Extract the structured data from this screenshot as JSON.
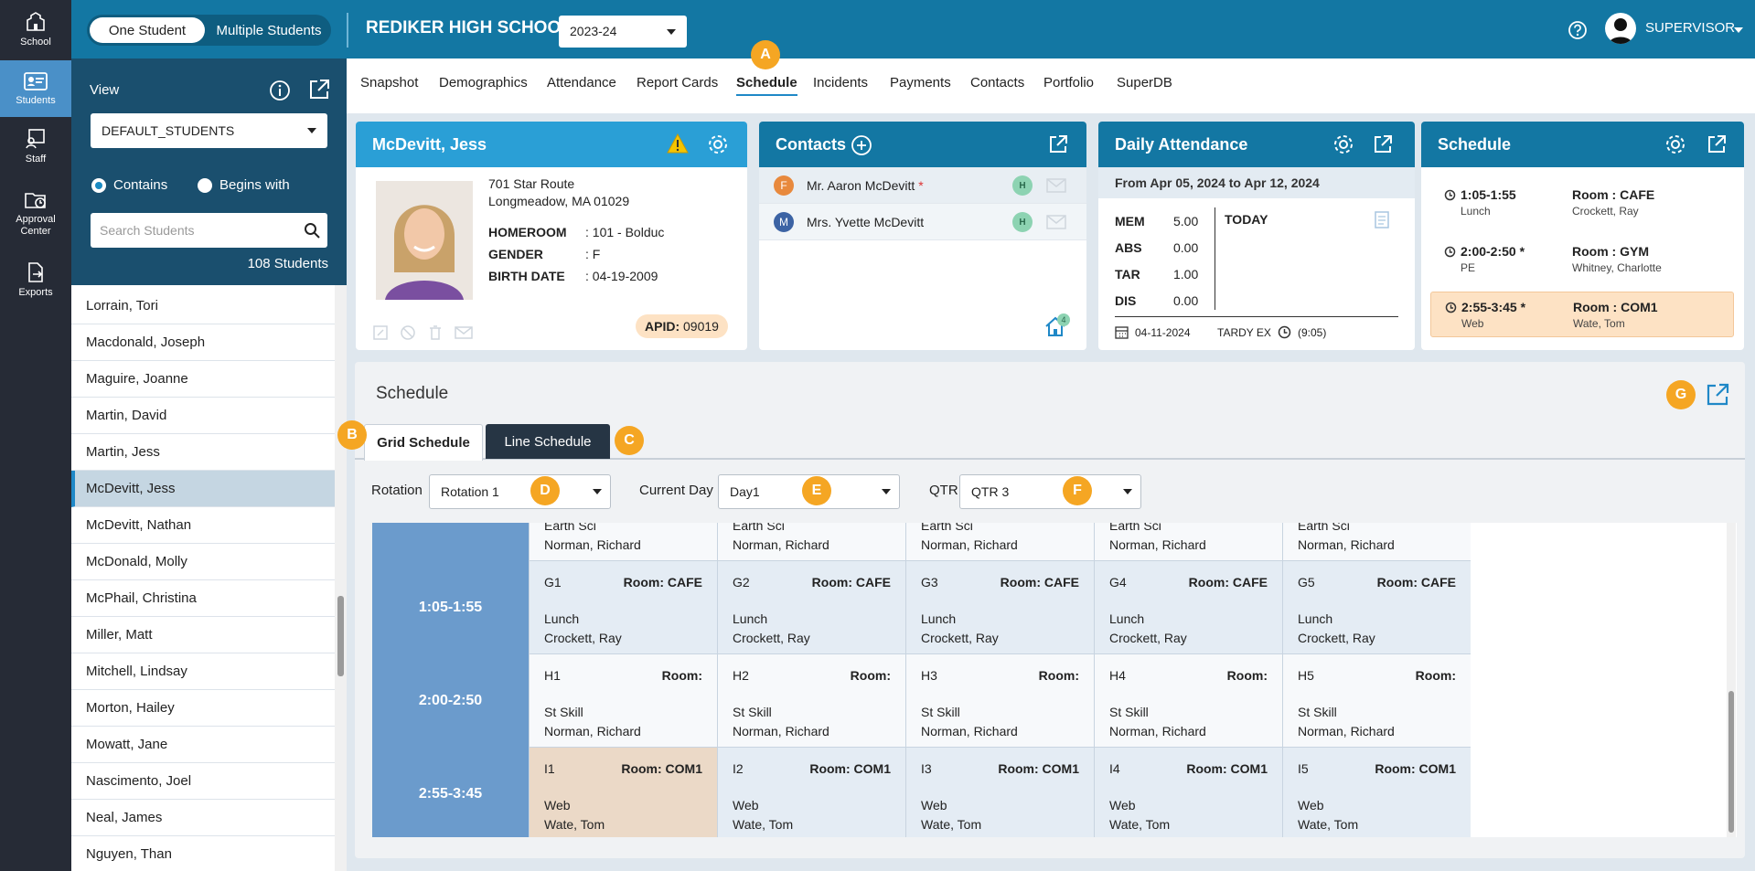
{
  "nav": [
    {
      "label": "School",
      "icon": "school-icon"
    },
    {
      "label": "Students",
      "icon": "students-icon"
    },
    {
      "label": "Staff",
      "icon": "staff-icon"
    },
    {
      "label": "Approval Center",
      "icon": "approval-icon"
    },
    {
      "label": "Exports",
      "icon": "exports-icon"
    }
  ],
  "topbar": {
    "one_student": "One Student",
    "multiple_students": "Multiple Students",
    "school_name": "REDIKER HIGH SCHOOL",
    "year": "2023-24",
    "user": "SUPERVISOR"
  },
  "view": {
    "label": "View",
    "selected": "DEFAULT_STUDENTS",
    "contains": "Contains",
    "begins_with": "Begins with",
    "search_placeholder": "Search Students",
    "count": "108 Students"
  },
  "students": [
    "Lorrain, Tori",
    "Macdonald, Joseph",
    "Maguire, Joanne",
    "Martin, David",
    "Martin, Jess",
    "McDevitt, Jess",
    "McDevitt, Nathan",
    "McDonald, Molly",
    "McPhail, Christina",
    "Miller, Matt",
    "Mitchell, Lindsay",
    "Morton, Hailey",
    "Mowatt, Jane",
    "Nascimento, Joel",
    "Neal, James",
    "Nguyen, Than"
  ],
  "selected_student": "McDevitt, Jess",
  "tabs": [
    "Snapshot",
    "Demographics",
    "Attendance",
    "Report Cards",
    "Schedule",
    "Incidents",
    "Payments",
    "Contacts",
    "Portfolio",
    "SuperDB"
  ],
  "active_tab": "Schedule",
  "badges": {
    "a": "A",
    "b": "B",
    "c": "C",
    "d": "D",
    "e": "E",
    "f": "F",
    "g": "G"
  },
  "student_card": {
    "name": "McDevitt, Jess",
    "address1": "701 Star Route",
    "address2": "Longmeadow, MA 01029",
    "homeroom_label": "HOMEROOM",
    "homeroom": ": 101 - Bolduc",
    "gender_label": "GENDER",
    "gender": ": F",
    "birth_label": "BIRTH DATE",
    "birth": ": 04-19-2009",
    "apid_label": "APID:",
    "apid": "09019"
  },
  "contacts_card": {
    "title": "Contacts",
    "contacts": [
      {
        "initial": "F",
        "name": "Mr. Aaron McDevitt",
        "star": "*",
        "badge": "H"
      },
      {
        "initial": "M",
        "name": "Mrs. Yvette McDevitt",
        "star": "",
        "badge": "H"
      }
    ],
    "home_count": "4"
  },
  "attendance_card": {
    "title": "Daily Attendance",
    "range": "From Apr 05, 2024 to Apr 12, 2024",
    "rows": [
      {
        "k": "MEM",
        "v": "5.00"
      },
      {
        "k": "ABS",
        "v": "0.00"
      },
      {
        "k": "TAR",
        "v": "1.00"
      },
      {
        "k": "DIS",
        "v": "0.00"
      }
    ],
    "today": "TODAY",
    "date": "04-11-2024",
    "code": "TARDY EX",
    "time": "(9:05)"
  },
  "schedule_card": {
    "title": "Schedule",
    "items": [
      {
        "time": "1:05-1:55",
        "sub": "Lunch",
        "room": "Room : CAFE",
        "teacher": "Crockett, Ray"
      },
      {
        "time": "2:00-2:50 *",
        "sub": "PE",
        "room": "Room : GYM",
        "teacher": "Whitney, Charlotte"
      },
      {
        "time": "2:55-3:45 *",
        "sub": "Web",
        "room": "Room : COM1",
        "teacher": "Wate, Tom"
      }
    ]
  },
  "schedule_panel": {
    "title": "Schedule",
    "grid_tab": "Grid Schedule",
    "line_tab": "Line Schedule",
    "rotation_label": "Rotation",
    "rotation": "Rotation 1",
    "day_label": "Current Day",
    "day": "Day1",
    "qtr_label": "QTR",
    "qtr": "QTR 3"
  },
  "grid": {
    "partial_row": {
      "subject": "Earth Sci",
      "teacher": "Norman, Richard"
    },
    "rows": [
      {
        "time": "1:05-1:55",
        "cells": [
          {
            "code": "G1",
            "room": "Room: CAFE",
            "subject": "Lunch",
            "teacher": "Crockett, Ray"
          },
          {
            "code": "G2",
            "room": "Room: CAFE",
            "subject": "Lunch",
            "teacher": "Crockett, Ray"
          },
          {
            "code": "G3",
            "room": "Room: CAFE",
            "subject": "Lunch",
            "teacher": "Crockett, Ray"
          },
          {
            "code": "G4",
            "room": "Room: CAFE",
            "subject": "Lunch",
            "teacher": "Crockett, Ray"
          },
          {
            "code": "G5",
            "room": "Room: CAFE",
            "subject": "Lunch",
            "teacher": "Crockett, Ray"
          }
        ]
      },
      {
        "time": "2:00-2:50",
        "cells": [
          {
            "code": "H1",
            "room": "Room:",
            "subject": "St Skill",
            "teacher": "Norman, Richard"
          },
          {
            "code": "H2",
            "room": "Room:",
            "subject": "St Skill",
            "teacher": "Norman, Richard"
          },
          {
            "code": "H3",
            "room": "Room:",
            "subject": "St Skill",
            "teacher": "Norman, Richard"
          },
          {
            "code": "H4",
            "room": "Room:",
            "subject": "St Skill",
            "teacher": "Norman, Richard"
          },
          {
            "code": "H5",
            "room": "Room:",
            "subject": "St Skill",
            "teacher": "Norman, Richard"
          }
        ]
      },
      {
        "time": "2:55-3:45",
        "cells": [
          {
            "code": "I1",
            "room": "Room: COM1",
            "subject": "Web",
            "teacher": "Wate, Tom"
          },
          {
            "code": "I2",
            "room": "Room: COM1",
            "subject": "Web",
            "teacher": "Wate, Tom"
          },
          {
            "code": "I3",
            "room": "Room: COM1",
            "subject": "Web",
            "teacher": "Wate, Tom"
          },
          {
            "code": "I4",
            "room": "Room: COM1",
            "subject": "Web",
            "teacher": "Wate, Tom"
          },
          {
            "code": "I5",
            "room": "Room: COM1",
            "subject": "Web",
            "teacher": "Wate, Tom"
          }
        ]
      }
    ]
  },
  "colors": {
    "topbar": "#1377a3",
    "accent": "#2a9fd6",
    "badge": "#f5a623",
    "highlight": "#fde2c4"
  }
}
